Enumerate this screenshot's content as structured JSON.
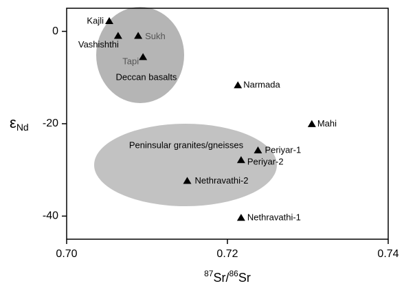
{
  "chart_data": {
    "type": "scatter",
    "x": [
      0.7053,
      0.7064,
      0.7089,
      0.7095,
      0.7213,
      0.7305,
      0.7238,
      0.7217,
      0.715,
      0.7217
    ],
    "values": [
      2.2,
      -1.0,
      -1.0,
      -5.6,
      -11.7,
      -20.1,
      -25.8,
      -27.9,
      -32.4,
      -40.4
    ],
    "point_labels": [
      "Kajli",
      "Vashishthi",
      "Sukh",
      "Tapi",
      "Narmada",
      "Mahi",
      "Periyar-1",
      "Periyar-2",
      "Nethravathi-2",
      "Nethravathi-1"
    ],
    "color": "#000000",
    "annotations": [
      "Deccan basalts",
      "Peninsular granites/gneisses"
    ],
    "xlabel": [
      "87",
      "Sr/",
      "86",
      "Sr"
    ],
    "ylabel": [
      "ε",
      "Nd"
    ],
    "xlim": [
      0.7,
      0.74
    ],
    "ylim": [
      -45,
      5
    ],
    "xticks": [
      {
        "value": 0.7,
        "label": "0.70"
      },
      {
        "value": 0.72,
        "label": "0.72"
      },
      {
        "value": 0.74,
        "label": "0.74"
      }
    ],
    "yticks": [
      0,
      -20,
      -40
    ]
  }
}
